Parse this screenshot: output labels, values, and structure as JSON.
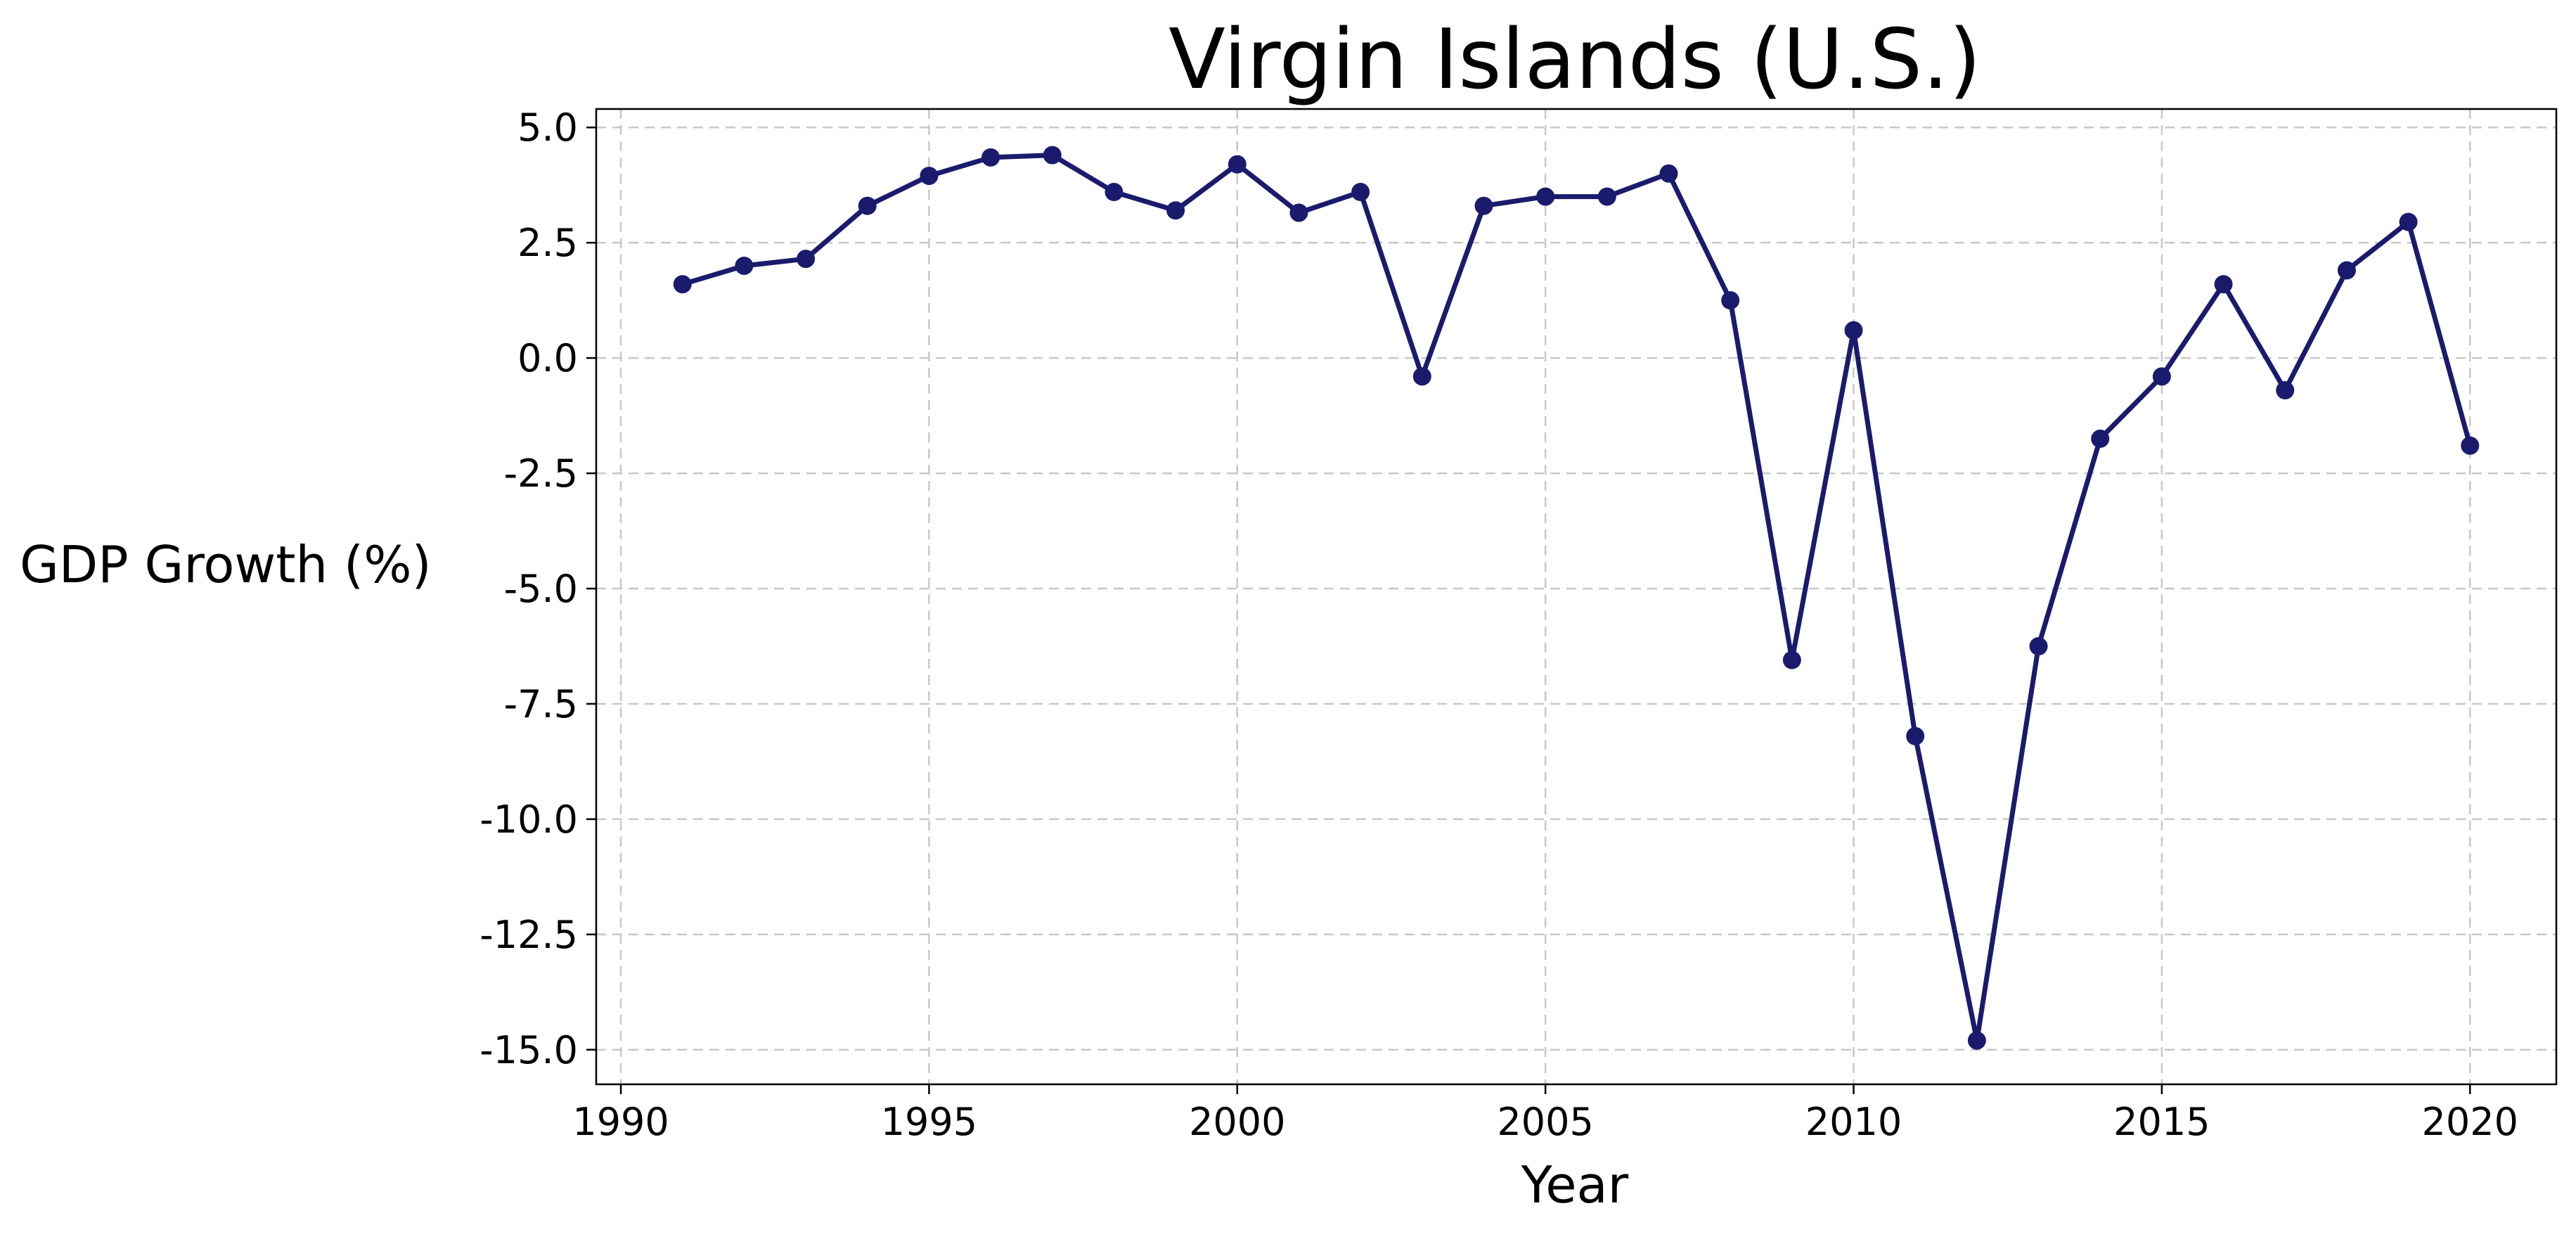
{
  "chart_data": {
    "type": "line",
    "title": "Virgin Islands (U.S.)",
    "xlabel": "Year",
    "ylabel": "GDP Growth (%)",
    "xlim": [
      1989.6,
      2021.4
    ],
    "ylim": [
      -15.75,
      5.4
    ],
    "x_ticks": [
      1990,
      1995,
      2000,
      2005,
      2010,
      2015,
      2020
    ],
    "y_ticks": [
      5.0,
      2.5,
      0.0,
      -2.5,
      -5.0,
      -7.5,
      -10.0,
      -12.5,
      -15.0
    ],
    "x_tick_labels": [
      "1990",
      "1995",
      "2000",
      "2005",
      "2010",
      "2015",
      "2020"
    ],
    "y_tick_labels": [
      "5.0",
      "2.5",
      "0.0",
      "-2.5",
      "-5.0",
      "-7.5",
      "-10.0",
      "-12.5",
      "-15.0"
    ],
    "grid": true,
    "legend": false,
    "line_color": "#1b1b6e",
    "marker": "circle",
    "series": [
      {
        "x": [
          1991,
          1992,
          1993,
          1994,
          1995,
          1996,
          1997,
          1998,
          1999,
          2000,
          2001,
          2002,
          2003,
          2004,
          2005,
          2006,
          2007,
          2008,
          2009,
          2010,
          2011,
          2012,
          2013,
          2014,
          2015,
          2016,
          2017,
          2018,
          2019,
          2020
        ],
        "values": [
          1.6,
          2.0,
          2.15,
          3.3,
          3.95,
          4.35,
          4.4,
          3.6,
          3.2,
          4.2,
          3.15,
          3.6,
          -0.4,
          3.3,
          3.5,
          3.5,
          4.0,
          1.25,
          -6.55,
          0.6,
          -8.2,
          -14.8,
          -6.25,
          -1.75,
          -0.4,
          1.6,
          -0.7,
          1.9,
          2.95,
          -1.9
        ]
      }
    ]
  }
}
